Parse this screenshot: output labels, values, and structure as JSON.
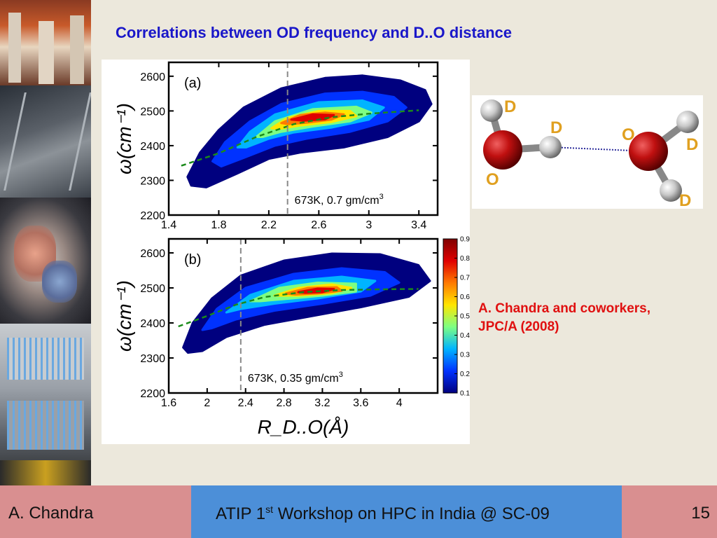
{
  "slide": {
    "title": "Correlations between OD frequency  and D..O distance",
    "citation_line1": "A. Chandra and coworkers,",
    "citation_line2": "JPC/A (2008)"
  },
  "molecule": {
    "labels": [
      "D",
      "D",
      "O",
      "O",
      "D",
      "D"
    ]
  },
  "footer": {
    "author": "A. Chandra",
    "event_prefix": "ATIP 1",
    "event_sup": "st",
    "event_suffix": " Workshop on HPC in India @ SC-09",
    "page": "15"
  },
  "colors": {
    "title": "#1a17c9",
    "citation": "#e01010",
    "footer_side": "#d98f90",
    "footer_mid": "#4c8fd8"
  },
  "chart_data": [
    {
      "type": "heatmap",
      "panel_label": "(a)",
      "annotation": "673K, 0.7 gm/cm",
      "annotation_sup": "3",
      "ylabel": "ω(cm⁻¹)",
      "xlim": [
        1.4,
        3.55
      ],
      "ylim": [
        2200,
        2640
      ],
      "xticks": [
        "1.4",
        "1.8",
        "2.2",
        "2.6",
        "3",
        "3.4"
      ],
      "xtick_values": [
        1.4,
        1.8,
        2.2,
        2.6,
        3.0,
        3.4
      ],
      "yticks": [
        "2200",
        "2300",
        "2400",
        "2500",
        "2600"
      ],
      "ytick_values": [
        2200,
        2300,
        2400,
        2500,
        2600
      ],
      "vline_x": 2.35,
      "peak": {
        "x": 2.55,
        "y": 2480
      },
      "fit_line": [
        [
          1.5,
          2342
        ],
        [
          1.8,
          2378
        ],
        [
          2.1,
          2425
        ],
        [
          2.4,
          2462
        ],
        [
          2.7,
          2482
        ],
        [
          3.0,
          2492
        ],
        [
          3.4,
          2502
        ]
      ],
      "contours": [
        [
          [
            1.55,
            2310
          ],
          [
            1.65,
            2380
          ],
          [
            1.8,
            2445
          ],
          [
            2.0,
            2510
          ],
          [
            2.3,
            2565
          ],
          [
            2.65,
            2595
          ],
          [
            2.95,
            2602
          ],
          [
            3.25,
            2588
          ],
          [
            3.45,
            2560
          ],
          [
            3.5,
            2520
          ],
          [
            3.4,
            2470
          ],
          [
            3.15,
            2425
          ],
          [
            2.8,
            2395
          ],
          [
            2.45,
            2380
          ],
          [
            2.2,
            2362
          ],
          [
            1.95,
            2320
          ],
          [
            1.7,
            2280
          ],
          [
            1.58,
            2285
          ]
        ],
        [
          [
            1.75,
            2355
          ],
          [
            1.85,
            2410
          ],
          [
            2.05,
            2470
          ],
          [
            2.3,
            2520
          ],
          [
            2.65,
            2550
          ],
          [
            2.95,
            2555
          ],
          [
            3.2,
            2540
          ],
          [
            3.3,
            2510
          ],
          [
            3.15,
            2470
          ],
          [
            2.85,
            2440
          ],
          [
            2.5,
            2420
          ],
          [
            2.25,
            2400
          ],
          [
            2.0,
            2365
          ],
          [
            1.82,
            2340
          ]
        ],
        [
          [
            1.95,
            2395
          ],
          [
            2.05,
            2440
          ],
          [
            2.25,
            2490
          ],
          [
            2.6,
            2525
          ],
          [
            2.95,
            2530
          ],
          [
            3.12,
            2510
          ],
          [
            3.0,
            2475
          ],
          [
            2.7,
            2452
          ],
          [
            2.4,
            2438
          ],
          [
            2.2,
            2420
          ],
          [
            2.02,
            2395
          ]
        ],
        [
          [
            2.1,
            2425
          ],
          [
            2.25,
            2470
          ],
          [
            2.55,
            2505
          ],
          [
            2.9,
            2512
          ],
          [
            3.02,
            2495
          ],
          [
            2.85,
            2470
          ],
          [
            2.55,
            2455
          ],
          [
            2.3,
            2440
          ],
          [
            2.15,
            2425
          ]
        ],
        [
          [
            2.22,
            2450
          ],
          [
            2.35,
            2480
          ],
          [
            2.6,
            2500
          ],
          [
            2.85,
            2500
          ],
          [
            2.9,
            2485
          ],
          [
            2.7,
            2468
          ],
          [
            2.45,
            2458
          ],
          [
            2.28,
            2448
          ]
        ],
        [
          [
            2.3,
            2465
          ],
          [
            2.45,
            2488
          ],
          [
            2.65,
            2495
          ],
          [
            2.8,
            2490
          ],
          [
            2.7,
            2475
          ],
          [
            2.5,
            2466
          ],
          [
            2.35,
            2462
          ]
        ],
        [
          [
            2.38,
            2475
          ],
          [
            2.55,
            2490
          ],
          [
            2.72,
            2488
          ],
          [
            2.65,
            2476
          ],
          [
            2.48,
            2472
          ]
        ]
      ]
    },
    {
      "type": "heatmap",
      "panel_label": "(b)",
      "annotation": "673K, 0.35 gm/cm",
      "annotation_sup": "3",
      "xlabel": "R_D..O(Å)",
      "ylabel": "ω(cm⁻¹)",
      "xlim": [
        1.6,
        4.4
      ],
      "ylim": [
        2200,
        2640
      ],
      "xticks": [
        "1.6",
        "2",
        "2.4",
        "2.8",
        "3.2",
        "3.6",
        "4"
      ],
      "xtick_values": [
        1.6,
        2.0,
        2.4,
        2.8,
        3.2,
        3.6,
        4.0
      ],
      "yticks": [
        "2200",
        "2300",
        "2400",
        "2500",
        "2600"
      ],
      "ytick_values": [
        2200,
        2300,
        2400,
        2500,
        2600
      ],
      "vline_x": 2.35,
      "peak": {
        "x": 3.1,
        "y": 2492
      },
      "fit_line": [
        [
          1.7,
          2390
        ],
        [
          2.0,
          2420
        ],
        [
          2.3,
          2452
        ],
        [
          2.6,
          2474
        ],
        [
          3.0,
          2488
        ],
        [
          3.4,
          2494
        ],
        [
          3.8,
          2496
        ],
        [
          4.2,
          2497
        ]
      ],
      "contours": [
        [
          [
            1.75,
            2330
          ],
          [
            1.85,
            2400
          ],
          [
            2.05,
            2470
          ],
          [
            2.35,
            2535
          ],
          [
            2.8,
            2578
          ],
          [
            3.3,
            2598
          ],
          [
            3.8,
            2596
          ],
          [
            4.2,
            2565
          ],
          [
            4.32,
            2520
          ],
          [
            4.1,
            2475
          ],
          [
            3.6,
            2445
          ],
          [
            3.1,
            2420
          ],
          [
            2.6,
            2395
          ],
          [
            2.2,
            2360
          ],
          [
            1.95,
            2320
          ],
          [
            1.8,
            2315
          ]
        ],
        [
          [
            1.95,
            2380
          ],
          [
            2.1,
            2440
          ],
          [
            2.4,
            2500
          ],
          [
            2.9,
            2540
          ],
          [
            3.4,
            2556
          ],
          [
            3.85,
            2545
          ],
          [
            4.0,
            2515
          ],
          [
            3.7,
            2478
          ],
          [
            3.2,
            2455
          ],
          [
            2.7,
            2435
          ],
          [
            2.3,
            2410
          ],
          [
            2.05,
            2385
          ]
        ],
        [
          [
            2.2,
            2430
          ],
          [
            2.45,
            2480
          ],
          [
            2.9,
            2520
          ],
          [
            3.4,
            2532
          ],
          [
            3.75,
            2520
          ],
          [
            3.6,
            2490
          ],
          [
            3.15,
            2470
          ],
          [
            2.7,
            2455
          ],
          [
            2.35,
            2440
          ]
        ],
        [
          [
            2.45,
            2462
          ],
          [
            2.75,
            2500
          ],
          [
            3.15,
            2515
          ],
          [
            3.55,
            2512
          ],
          [
            3.55,
            2490
          ],
          [
            3.2,
            2478
          ],
          [
            2.8,
            2468
          ],
          [
            2.55,
            2462
          ]
        ],
        [
          [
            2.7,
            2478
          ],
          [
            2.95,
            2500
          ],
          [
            3.3,
            2510
          ],
          [
            3.5,
            2500
          ],
          [
            3.3,
            2485
          ],
          [
            2.95,
            2478
          ]
        ],
        [
          [
            2.82,
            2484
          ],
          [
            3.05,
            2500
          ],
          [
            3.35,
            2502
          ],
          [
            3.4,
            2492
          ],
          [
            3.15,
            2484
          ],
          [
            2.92,
            2481
          ]
        ],
        [
          [
            2.95,
            2488
          ],
          [
            3.15,
            2498
          ],
          [
            3.32,
            2497
          ],
          [
            3.2,
            2488
          ],
          [
            3.02,
            2486
          ]
        ]
      ]
    }
  ],
  "colorbar": {
    "ticks": [
      "0.9",
      "0.8",
      "0.7",
      "0.6",
      "0.5",
      "0.4",
      "0.3",
      "0.2",
      "0.1"
    ],
    "tick_values": [
      0.9,
      0.8,
      0.7,
      0.6,
      0.5,
      0.4,
      0.3,
      0.2,
      0.1
    ],
    "range": [
      0.1,
      0.9
    ],
    "level_colors": [
      "#00007f",
      "#0032ff",
      "#00b4ff",
      "#7dff82",
      "#ffe600",
      "#ff7a00",
      "#e00000",
      "#7f0000"
    ]
  }
}
